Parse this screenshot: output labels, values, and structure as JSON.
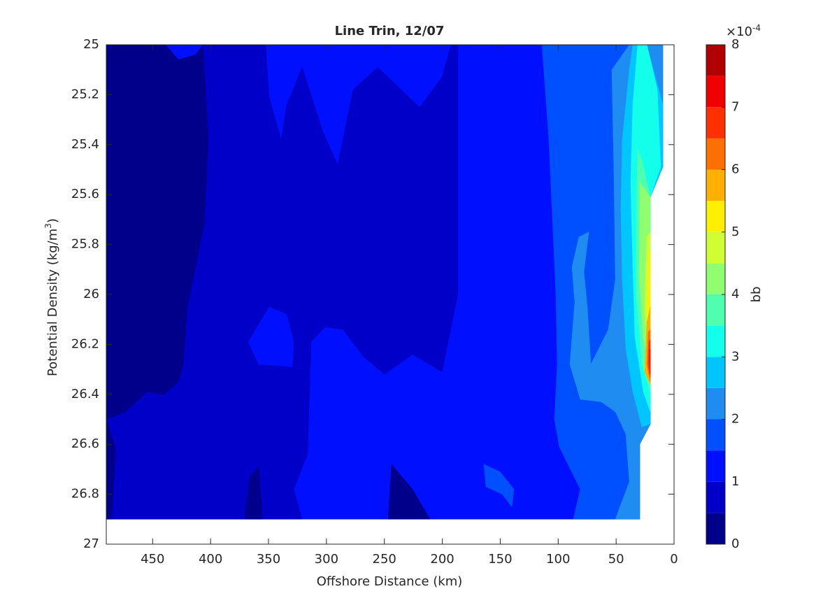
{
  "chart_data": {
    "type": "contour",
    "title": "Line Trin, 12/07",
    "xlabel": "Offshore Distance (km)",
    "ylabel": "Potential Density (kg/m",
    "ylabel_sup": "3",
    "ylabel_end": ")",
    "xlim": [
      490,
      0
    ],
    "xticks": [
      450,
      400,
      350,
      300,
      250,
      200,
      150,
      100,
      50,
      0
    ],
    "ylim": [
      27,
      25
    ],
    "yticks": [
      25,
      25.2,
      25.4,
      25.6,
      25.8,
      26,
      26.2,
      26.4,
      26.6,
      26.8,
      27
    ],
    "colorbar": {
      "label": "bb",
      "scale_base": "×10",
      "scale_exp": "-4",
      "clim": [
        0,
        8
      ],
      "ticks": [
        0,
        1,
        2,
        3,
        4,
        5,
        6,
        7,
        8
      ],
      "colors": [
        "#00008a",
        "#0000c8",
        "#0010ff",
        "#0050ff",
        "#1e8cf0",
        "#00c6ff",
        "#14ffeb",
        "#4fffb0",
        "#8fff70",
        "#cfff30",
        "#ffef00",
        "#ffb000",
        "#ff7000",
        "#ff3000",
        "#f00000",
        "#b00000"
      ]
    },
    "regions": [
      {
        "level": 1,
        "points": [
          [
            490,
            25
          ],
          [
            9.7,
            25
          ],
          [
            9.7,
            25.49
          ],
          [
            20.5,
            25.61
          ],
          [
            20.5,
            26.52
          ],
          [
            29.6,
            26.6
          ],
          [
            29.6,
            26.9
          ],
          [
            490,
            26.9
          ]
        ]
      },
      {
        "level": 0.5,
        "points": [
          [
            406.7,
            25
          ],
          [
            352.4,
            25
          ],
          [
            349.4,
            25.21
          ],
          [
            339.1,
            25.38
          ],
          [
            334.3,
            25.24
          ],
          [
            321,
            25.09
          ],
          [
            302.9,
            25.35
          ],
          [
            290.2,
            25.48
          ],
          [
            277,
            25.18
          ],
          [
            255.8,
            25.09
          ],
          [
            219.6,
            25.25
          ],
          [
            200.3,
            25.13
          ],
          [
            192.5,
            25
          ],
          [
            186.5,
            25
          ],
          [
            186.5,
            26
          ],
          [
            200.3,
            26.31
          ],
          [
            225.7,
            26.24
          ],
          [
            249.8,
            26.32
          ],
          [
            267.9,
            26.25
          ],
          [
            286,
            26.14
          ],
          [
            301.1,
            26.13
          ],
          [
            313.2,
            26.19
          ],
          [
            316.2,
            26.64
          ],
          [
            328.2,
            26.78
          ],
          [
            321,
            26.9
          ],
          [
            490,
            26.9
          ],
          [
            490,
            26.5
          ],
          [
            401.9,
            25.38
          ]
        ]
      },
      {
        "level": 0,
        "points": [
          [
            490,
            25
          ],
          [
            438.7,
            25
          ],
          [
            427.8,
            25.06
          ],
          [
            412.7,
            25.04
          ],
          [
            406.7,
            25
          ],
          [
            401.9,
            25.38
          ],
          [
            405.5,
            25.72
          ],
          [
            420,
            26.05
          ],
          [
            423.6,
            26.28
          ],
          [
            427.8,
            26.35
          ],
          [
            439.9,
            26.4
          ],
          [
            455,
            26.39
          ],
          [
            473.1,
            26.47
          ],
          [
            490,
            26.5
          ]
        ]
      },
      {
        "level": 0,
        "points": [
          [
            490,
            26.5
          ],
          [
            482.1,
            26.61
          ],
          [
            485.1,
            26.9
          ],
          [
            490,
            26.9
          ]
        ]
      },
      {
        "level": 0,
        "points": [
          [
            370.5,
            26.9
          ],
          [
            366.3,
            26.73
          ],
          [
            358.4,
            26.69
          ],
          [
            355.4,
            26.9
          ]
        ]
      },
      {
        "level": 0,
        "points": [
          [
            246.8,
            26.9
          ],
          [
            243.8,
            26.68
          ],
          [
            225.7,
            26.78
          ],
          [
            210.6,
            26.9
          ]
        ]
      },
      {
        "level": 1,
        "points": [
          [
            357.2,
            26.11
          ],
          [
            349.4,
            26.05
          ],
          [
            334.3,
            26.08
          ],
          [
            328.2,
            26.19
          ],
          [
            329.5,
            26.29
          ],
          [
            358.4,
            26.28
          ],
          [
            367.5,
            26.19
          ]
        ]
      },
      {
        "level": 1.5,
        "points": [
          [
            114,
            25
          ],
          [
            108,
            25.38
          ],
          [
            102,
            26
          ],
          [
            100.8,
            26.28
          ],
          [
            103.2,
            26.5
          ],
          [
            99,
            26.61
          ],
          [
            80.9,
            26.78
          ],
          [
            86.9,
            26.9
          ],
          [
            29.6,
            26.9
          ],
          [
            29.6,
            26.6
          ],
          [
            20.5,
            26.52
          ],
          [
            20.5,
            25.61
          ],
          [
            9.7,
            25.49
          ],
          [
            9.7,
            25
          ]
        ]
      },
      {
        "level": 1.5,
        "points": [
          [
            164.1,
            26.68
          ],
          [
            150.2,
            26.71
          ],
          [
            138.2,
            26.78
          ],
          [
            140,
            26.85
          ],
          [
            148.4,
            26.8
          ],
          [
            162.3,
            26.77
          ]
        ]
      },
      {
        "level": 2,
        "points": [
          [
            53.7,
            25.1
          ],
          [
            38.6,
            25
          ],
          [
            9.7,
            25
          ],
          [
            9.7,
            25.49
          ],
          [
            20.5,
            25.61
          ],
          [
            20.5,
            26.52
          ],
          [
            29.6,
            26.6
          ],
          [
            29.6,
            26.9
          ],
          [
            50.7,
            26.9
          ],
          [
            38.6,
            26.75
          ],
          [
            41.6,
            26.56
          ],
          [
            50.7,
            26.47
          ],
          [
            62.8,
            26.43
          ],
          [
            80.9,
            26.42
          ],
          [
            89.9,
            26.28
          ],
          [
            85.7,
            26.03
          ],
          [
            88.1,
            25.89
          ],
          [
            82.1,
            25.77
          ],
          [
            73.6,
            25.75
          ],
          [
            77.8,
            25.91
          ],
          [
            74.8,
            26.05
          ],
          [
            71.8,
            26.28
          ],
          [
            56.7,
            26.14
          ],
          [
            50.7,
            25.94
          ],
          [
            51.9,
            25.52
          ]
        ]
      },
      {
        "level": 2.5,
        "points": [
          [
            35.6,
            25
          ],
          [
            23.5,
            25
          ],
          [
            9.7,
            25.24
          ],
          [
            9.7,
            25.49
          ],
          [
            20.5,
            25.61
          ],
          [
            20.5,
            26.52
          ],
          [
            27.8,
            26.53
          ],
          [
            35.6,
            26.39
          ],
          [
            41.6,
            26.22
          ],
          [
            44.7,
            25.94
          ],
          [
            45.9,
            25.66
          ],
          [
            44.7,
            25.38
          ],
          [
            38.6,
            25.1
          ]
        ]
      },
      {
        "level": 3,
        "points": [
          [
            31.4,
            25
          ],
          [
            23.5,
            25
          ],
          [
            14.5,
            25.18
          ],
          [
            11.5,
            25.49
          ],
          [
            20.5,
            25.61
          ],
          [
            20.5,
            26.47
          ],
          [
            26.5,
            26.39
          ],
          [
            33.8,
            26.17
          ],
          [
            35.6,
            25.89
          ],
          [
            37.4,
            25.55
          ],
          [
            35.6,
            25.24
          ]
        ]
      },
      {
        "level": 3.5,
        "points": [
          [
            31.4,
            25.42
          ],
          [
            27.8,
            25.46
          ],
          [
            20.5,
            25.61
          ],
          [
            20.5,
            26.39
          ],
          [
            27.8,
            26.28
          ],
          [
            32.6,
            26
          ],
          [
            32.6,
            25.66
          ]
        ]
      },
      {
        "level": 4,
        "points": [
          [
            29.6,
            25.55
          ],
          [
            20.5,
            25.61
          ],
          [
            20.5,
            26.31
          ],
          [
            26.5,
            26.17
          ],
          [
            30.2,
            25.94
          ],
          [
            29.6,
            25.66
          ]
        ]
      },
      {
        "level": 4.5,
        "points": [
          [
            23.5,
            25.77
          ],
          [
            20.5,
            25.75
          ],
          [
            20.5,
            26.22
          ],
          [
            25.3,
            26.08
          ]
        ]
      },
      {
        "level": 5,
        "points": [
          [
            21.7,
            25.83
          ],
          [
            20.5,
            25.83
          ],
          [
            20.5,
            26.19
          ],
          [
            23.5,
            26.05
          ]
        ]
      },
      {
        "level": 5.5,
        "points": [
          [
            23.5,
            26.11
          ],
          [
            20.5,
            26.05
          ],
          [
            20.5,
            26.36
          ],
          [
            25.3,
            26.31
          ]
        ]
      },
      {
        "level": 6,
        "points": [
          [
            22.3,
            26.15
          ],
          [
            20.5,
            26.14
          ],
          [
            20.5,
            26.35
          ],
          [
            23.5,
            26.28
          ]
        ]
      },
      {
        "level": 6.5,
        "points": [
          [
            21.7,
            26.19
          ],
          [
            20.5,
            26.18
          ],
          [
            20.5,
            26.33
          ],
          [
            22.3,
            26.28
          ]
        ]
      },
      {
        "level": 7,
        "points": [
          [
            21.1,
            26.22
          ],
          [
            20.5,
            26.22
          ],
          [
            20.5,
            26.32
          ]
        ]
      }
    ]
  }
}
